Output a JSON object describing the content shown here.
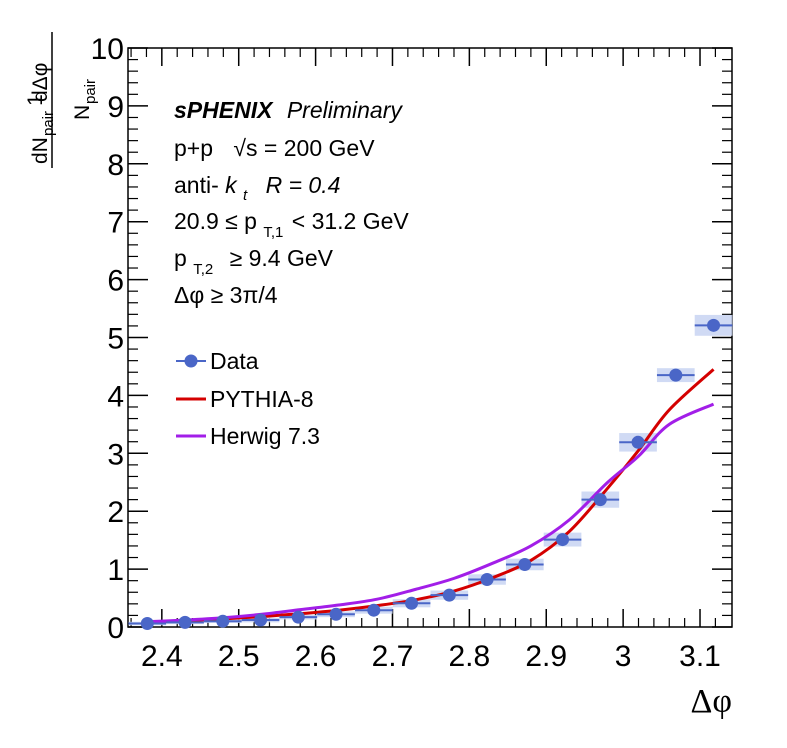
{
  "chart_data": {
    "type": "scatter",
    "xlim": [
      2.356,
      3.1416
    ],
    "ylim": [
      0,
      10
    ],
    "x_ticks": [
      "2.4",
      "2.5",
      "2.6",
      "2.7",
      "2.8",
      "2.9",
      "3",
      "3.1"
    ],
    "x_tick_values": [
      2.4,
      2.5,
      2.6,
      2.7,
      2.8,
      2.9,
      3.0,
      3.1
    ],
    "y_ticks": [
      "0",
      "1",
      "2",
      "3",
      "4",
      "5",
      "6",
      "7",
      "8",
      "9",
      "10"
    ],
    "y_tick_values": [
      0,
      1,
      2,
      3,
      4,
      5,
      6,
      7,
      8,
      9,
      10
    ],
    "xlabel": "Δφ",
    "ylabel": {
      "prefix": "1",
      "den_main": "N",
      "den_sub": "pair",
      "num_main": "dN",
      "num_sub": "pair",
      "num_suffix": "dΔφ"
    },
    "annotations": {
      "experiment": "sPHENIX",
      "status": "Preliminary",
      "system_prefix": "p+p",
      "system_rest": "√s = 200 GeV",
      "algo_prefix": "anti-",
      "algo_k": "k",
      "algo_ksub": "t",
      "algo_r": "R = 0.4",
      "pt1_left": "20.9 ≤ p",
      "pt1_sub": "T,1",
      "pt1_right": "< 31.2 GeV",
      "pt2_left": "p",
      "pt2_sub": "T,2",
      "pt2_right": "≥ 9.4 GeV",
      "dphi_cut": "Δφ ≥ 3π/4"
    },
    "legend": [
      "Data",
      "PYTHIA-8",
      "Herwig 7.3"
    ],
    "colors": {
      "data": "#4a66c7",
      "data_band": "#c8d4f2",
      "pythia": "#d40000",
      "herwig": "#a21ee8"
    },
    "series": [
      {
        "name": "Data",
        "kind": "points",
        "x": [
          2.3811,
          2.4302,
          2.4793,
          2.5284,
          2.5775,
          2.6266,
          2.6757,
          2.7248,
          2.7739,
          2.823,
          2.8721,
          2.9212,
          2.9703,
          3.0194,
          3.0685,
          3.1176
        ],
        "y": [
          0.06,
          0.08,
          0.1,
          0.12,
          0.17,
          0.22,
          0.29,
          0.41,
          0.55,
          0.82,
          1.08,
          1.51,
          2.2,
          3.19,
          4.35,
          5.21
        ],
        "xerr": 0.0245,
        "sys_err": [
          0.03,
          0.03,
          0.03,
          0.04,
          0.04,
          0.05,
          0.06,
          0.07,
          0.08,
          0.09,
          0.1,
          0.12,
          0.14,
          0.16,
          0.12,
          0.18
        ]
      },
      {
        "name": "PYTHIA-8",
        "kind": "line",
        "x": [
          2.38,
          2.43,
          2.48,
          2.53,
          2.58,
          2.63,
          2.68,
          2.73,
          2.78,
          2.83,
          2.88,
          2.93,
          2.98,
          3.02,
          3.06,
          3.1176
        ],
        "y": [
          0.08,
          0.11,
          0.14,
          0.18,
          0.23,
          0.29,
          0.37,
          0.47,
          0.62,
          0.85,
          1.15,
          1.65,
          2.4,
          3.05,
          3.75,
          4.45
        ]
      },
      {
        "name": "Herwig 7.3",
        "kind": "line",
        "x": [
          2.38,
          2.43,
          2.48,
          2.53,
          2.58,
          2.63,
          2.68,
          2.73,
          2.78,
          2.83,
          2.88,
          2.93,
          2.98,
          3.02,
          3.06,
          3.1176
        ],
        "y": [
          0.09,
          0.12,
          0.16,
          0.22,
          0.3,
          0.38,
          0.48,
          0.65,
          0.84,
          1.1,
          1.4,
          1.85,
          2.5,
          2.95,
          3.5,
          3.85
        ]
      }
    ]
  }
}
